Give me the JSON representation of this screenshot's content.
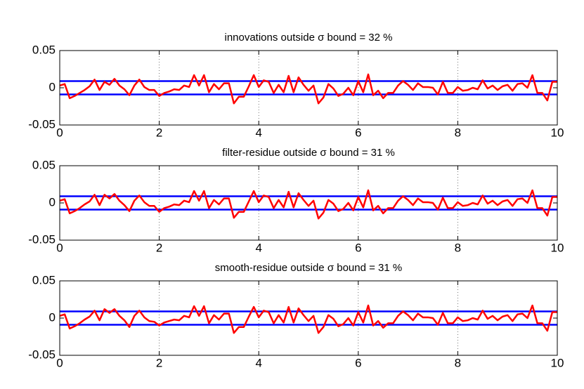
{
  "chart_data": [
    {
      "type": "line",
      "title": "innovations outside σ bound = 32 %",
      "x": [
        0,
        0.1,
        0.2,
        0.3,
        0.4,
        0.5,
        0.6,
        0.7,
        0.8,
        0.9,
        1,
        1.1,
        1.2,
        1.3,
        1.4,
        1.5,
        1.6,
        1.7,
        1.8,
        1.9,
        2,
        2.1,
        2.2,
        2.3,
        2.4,
        2.5,
        2.6,
        2.7,
        2.8,
        2.9,
        3,
        3.1,
        3.2,
        3.3,
        3.4,
        3.5,
        3.6,
        3.7,
        3.8,
        3.9,
        4,
        4.1,
        4.2,
        4.3,
        4.4,
        4.5,
        4.6,
        4.7,
        4.8,
        4.9,
        5,
        5.1,
        5.2,
        5.3,
        5.4,
        5.5,
        5.6,
        5.7,
        5.8,
        5.9,
        6,
        6.1,
        6.2,
        6.3,
        6.4,
        6.5,
        6.6,
        6.7,
        6.8,
        6.9,
        7,
        7.1,
        7.2,
        7.3,
        7.4,
        7.5,
        7.6,
        7.7,
        7.8,
        7.9,
        8,
        8.1,
        8.2,
        8.3,
        8.4,
        8.5,
        8.6,
        8.7,
        8.8,
        8.9,
        9,
        9.1,
        9.2,
        9.3,
        9.4,
        9.5,
        9.6,
        9.7,
        9.8,
        9.9,
        10
      ],
      "series": [
        {
          "color": "#ff0000",
          "values": [
            0.003,
            0.005,
            -0.014,
            -0.011,
            -0.007,
            -0.003,
            0.002,
            0.011,
            -0.003,
            0.008,
            0.004,
            0.012,
            0.003,
            -0.002,
            -0.01,
            0.003,
            0.011,
            0.001,
            -0.003,
            -0.003,
            -0.011,
            -0.007,
            -0.005,
            -0.002,
            -0.003,
            0.003,
            0.001,
            0.017,
            0.003,
            0.017,
            -0.006,
            0.005,
            -0.002,
            0.006,
            0.006,
            -0.021,
            -0.012,
            -0.012,
            0.002,
            0.017,
            0.001,
            0.01,
            0.008,
            -0.007,
            0.004,
            -0.006,
            0.016,
            -0.006,
            0.014,
            0.004,
            -0.004,
            0.003,
            -0.021,
            -0.013,
            0.005,
            -0.001,
            -0.011,
            -0.008,
            0,
            -0.01,
            0.009,
            -0.006,
            0.018,
            -0.01,
            -0.004,
            -0.014,
            -0.007,
            -0.007,
            0.003,
            0.009,
            0.004,
            -0.003,
            0.006,
            0.001,
            0.001,
            0,
            -0.009,
            0.008,
            -0.007,
            -0.007,
            0.001,
            -0.004,
            -0.003,
            0,
            -0.002,
            0.01,
            -0.001,
            0.003,
            -0.003,
            0.002,
            0.004,
            -0.004,
            0.005,
            0.006,
            0,
            0.017,
            -0.007,
            -0.007,
            -0.017,
            0.008,
            0.008
          ]
        }
      ],
      "bound_lines": {
        "color": "#0000ff",
        "values": [
          0.009,
          -0.009
        ]
      },
      "xlim": [
        0,
        10
      ],
      "ylim": [
        -0.05,
        0.05
      ],
      "xticks": [
        0,
        2,
        4,
        6,
        8,
        10
      ],
      "yticks": [
        -0.05,
        0,
        0.05
      ],
      "xgrid": true
    },
    {
      "type": "line",
      "title": "filter-residue outside σ bound = 31 %",
      "x": [
        0,
        0.1,
        0.2,
        0.3,
        0.4,
        0.5,
        0.6,
        0.7,
        0.8,
        0.9,
        1,
        1.1,
        1.2,
        1.3,
        1.4,
        1.5,
        1.6,
        1.7,
        1.8,
        1.9,
        2,
        2.1,
        2.2,
        2.3,
        2.4,
        2.5,
        2.6,
        2.7,
        2.8,
        2.9,
        3,
        3.1,
        3.2,
        3.3,
        3.4,
        3.5,
        3.6,
        3.7,
        3.8,
        3.9,
        4,
        4.1,
        4.2,
        4.3,
        4.4,
        4.5,
        4.6,
        4.7,
        4.8,
        4.9,
        5,
        5.1,
        5.2,
        5.3,
        5.4,
        5.5,
        5.6,
        5.7,
        5.8,
        5.9,
        6,
        6.1,
        6.2,
        6.3,
        6.4,
        6.5,
        6.6,
        6.7,
        6.8,
        6.9,
        7,
        7.1,
        7.2,
        7.3,
        7.4,
        7.5,
        7.6,
        7.7,
        7.8,
        7.9,
        8,
        8.1,
        8.2,
        8.3,
        8.4,
        8.5,
        8.6,
        8.7,
        8.8,
        8.9,
        9,
        9.1,
        9.2,
        9.3,
        9.4,
        9.5,
        9.6,
        9.7,
        9.8,
        9.9,
        10
      ],
      "series": [
        {
          "color": "#ff0000",
          "values": [
            0.003,
            0.005,
            -0.014,
            -0.011,
            -0.007,
            -0.002,
            0.002,
            0.011,
            -0.003,
            0.011,
            0.006,
            0.012,
            0.003,
            -0.003,
            -0.011,
            0.003,
            0.01,
            0.001,
            -0.004,
            -0.004,
            -0.012,
            -0.007,
            -0.005,
            -0.002,
            -0.003,
            0.003,
            0.001,
            0.016,
            0.003,
            0.016,
            -0.007,
            0.004,
            -0.002,
            0.006,
            0.006,
            -0.02,
            -0.012,
            -0.012,
            0.002,
            0.016,
            0.001,
            0.01,
            0.008,
            -0.007,
            0.004,
            -0.006,
            0.015,
            -0.006,
            0.013,
            0.004,
            -0.004,
            0.003,
            -0.021,
            -0.013,
            0.004,
            -0.001,
            -0.011,
            -0.008,
            0,
            -0.01,
            0.008,
            -0.006,
            0.017,
            -0.01,
            -0.004,
            -0.014,
            -0.007,
            -0.007,
            0.003,
            0.009,
            0.004,
            -0.003,
            0.006,
            0.001,
            0.001,
            0,
            -0.009,
            0.007,
            -0.007,
            -0.007,
            0.001,
            -0.004,
            -0.003,
            0,
            -0.002,
            0.01,
            -0.001,
            0.003,
            -0.003,
            0.002,
            0.004,
            -0.004,
            0.005,
            0.006,
            0,
            0.017,
            -0.007,
            -0.007,
            -0.017,
            0.008,
            0.008
          ]
        }
      ],
      "bound_lines": {
        "color": "#0000ff",
        "values": [
          0.009,
          -0.009
        ]
      },
      "xlim": [
        0,
        10
      ],
      "ylim": [
        -0.05,
        0.05
      ],
      "xticks": [
        0,
        2,
        4,
        6,
        8,
        10
      ],
      "yticks": [
        -0.05,
        0,
        0.05
      ],
      "xgrid": true
    },
    {
      "type": "line",
      "title": "smooth-residue outside σ bound = 31 %",
      "x": [
        0,
        0.1,
        0.2,
        0.3,
        0.4,
        0.5,
        0.6,
        0.7,
        0.8,
        0.9,
        1,
        1.1,
        1.2,
        1.3,
        1.4,
        1.5,
        1.6,
        1.7,
        1.8,
        1.9,
        2,
        2.1,
        2.2,
        2.3,
        2.4,
        2.5,
        2.6,
        2.7,
        2.8,
        2.9,
        3,
        3.1,
        3.2,
        3.3,
        3.4,
        3.5,
        3.6,
        3.7,
        3.8,
        3.9,
        4,
        4.1,
        4.2,
        4.3,
        4.4,
        4.5,
        4.6,
        4.7,
        4.8,
        4.9,
        5,
        5.1,
        5.2,
        5.3,
        5.4,
        5.5,
        5.6,
        5.7,
        5.8,
        5.9,
        6,
        6.1,
        6.2,
        6.3,
        6.4,
        6.5,
        6.6,
        6.7,
        6.8,
        6.9,
        7,
        7.1,
        7.2,
        7.3,
        7.4,
        7.5,
        7.6,
        7.7,
        7.8,
        7.9,
        8,
        8.1,
        8.2,
        8.3,
        8.4,
        8.5,
        8.6,
        8.7,
        8.8,
        8.9,
        9,
        9.1,
        9.2,
        9.3,
        9.4,
        9.5,
        9.6,
        9.7,
        9.8,
        9.9,
        10
      ],
      "series": [
        {
          "color": "#ff0000",
          "values": [
            0.003,
            0.005,
            -0.014,
            -0.011,
            -0.007,
            -0.002,
            0.002,
            0.01,
            -0.003,
            0.012,
            0.007,
            0.012,
            0.003,
            -0.003,
            -0.012,
            0.003,
            0.01,
            0.001,
            -0.004,
            -0.005,
            -0.01,
            -0.006,
            -0.004,
            -0.002,
            -0.003,
            0.003,
            0.001,
            0.016,
            0.003,
            0.016,
            -0.007,
            0.004,
            -0.002,
            0.006,
            0.006,
            -0.02,
            -0.012,
            -0.012,
            0.002,
            0.015,
            0.001,
            0.01,
            0.008,
            -0.007,
            0.004,
            -0.006,
            0.015,
            -0.006,
            0.013,
            0.004,
            -0.004,
            0.003,
            -0.02,
            -0.012,
            0.004,
            -0.001,
            -0.011,
            -0.008,
            0,
            -0.01,
            0.008,
            -0.006,
            0.017,
            -0.01,
            -0.004,
            -0.013,
            -0.007,
            -0.007,
            0.003,
            0.009,
            0.004,
            -0.003,
            0.006,
            0.001,
            0.001,
            0,
            -0.009,
            0.007,
            -0.007,
            -0.007,
            0.001,
            -0.004,
            -0.003,
            0,
            -0.002,
            0.01,
            -0.001,
            0.003,
            -0.003,
            0.002,
            0.004,
            -0.004,
            0.005,
            0.006,
            0,
            0.017,
            -0.007,
            -0.007,
            -0.017,
            0.008,
            0.008
          ]
        }
      ],
      "bound_lines": {
        "color": "#0000ff",
        "values": [
          0.009,
          -0.009
        ]
      },
      "xlim": [
        0,
        10
      ],
      "ylim": [
        -0.05,
        0.05
      ],
      "xticks": [
        0,
        2,
        4,
        6,
        8,
        10
      ],
      "yticks": [
        -0.05,
        0,
        0.05
      ],
      "xgrid": true
    }
  ]
}
